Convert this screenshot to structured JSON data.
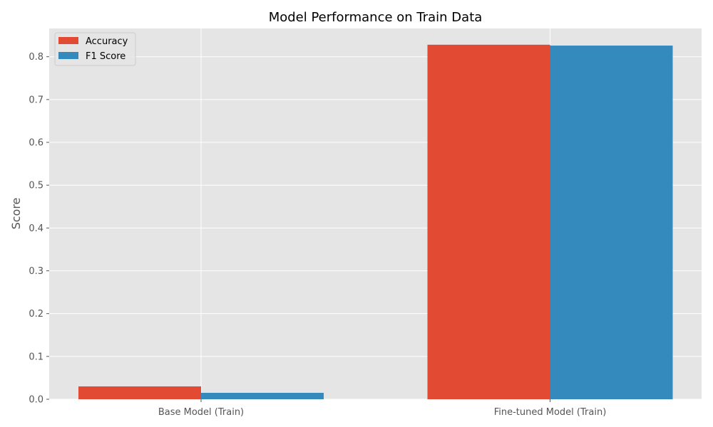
{
  "chart_data": {
    "type": "bar",
    "title": "Model Performance on Train Data",
    "xlabel": "",
    "ylabel": "Score",
    "categories": [
      "Base Model (Train)",
      "Fine-tuned Model (Train)"
    ],
    "series": [
      {
        "name": "Accuracy",
        "values": [
          0.03,
          0.828
        ],
        "color": "#E24A33"
      },
      {
        "name": "F1 Score",
        "values": [
          0.015,
          0.826
        ],
        "color": "#348ABD"
      }
    ],
    "ylim": [
      0,
      0.866
    ],
    "yticks": [
      0.0,
      0.1,
      0.2,
      0.3,
      0.4,
      0.5,
      0.6,
      0.7,
      0.8
    ],
    "ytick_labels": [
      "0.0",
      "0.1",
      "0.2",
      "0.3",
      "0.4",
      "0.5",
      "0.6",
      "0.7",
      "0.8"
    ],
    "grid": true,
    "legend_position": "upper-left",
    "background_color": "#E5E5E5",
    "grid_color": "#FFFFFF"
  }
}
